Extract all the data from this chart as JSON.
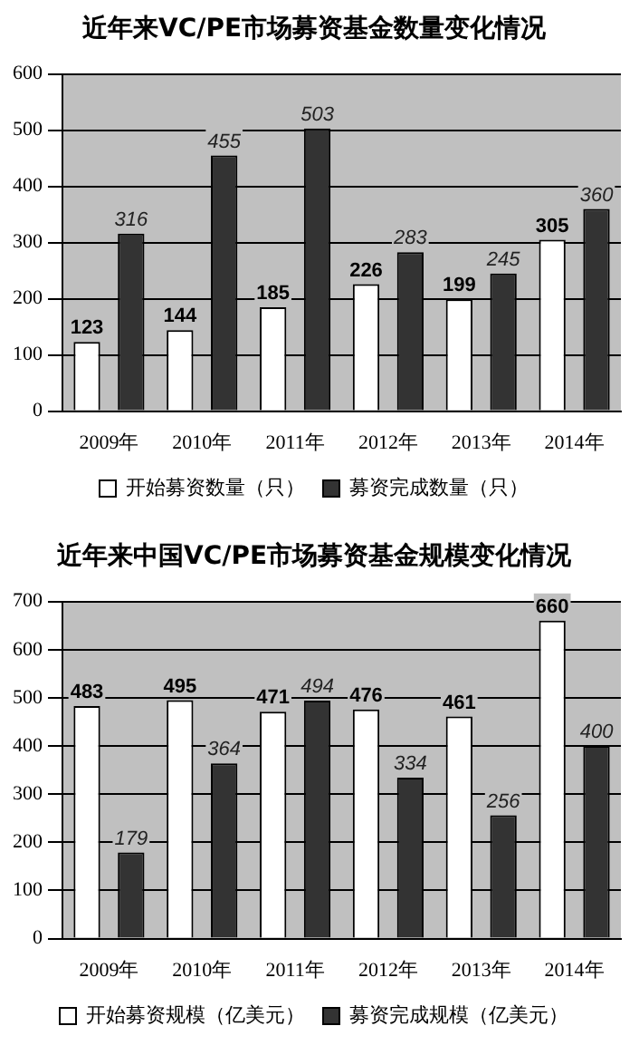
{
  "chart_data": [
    {
      "type": "bar",
      "title": "近年来VC/PE市场募资基金数量变化情况",
      "categories": [
        "2009年",
        "2010年",
        "2011年",
        "2012年",
        "2013年",
        "2014年"
      ],
      "series": [
        {
          "name": "开始募资数量（只）",
          "color": "#ffffff",
          "values": [
            123,
            144,
            185,
            226,
            199,
            305
          ]
        },
        {
          "name": "募资完成数量（只）",
          "color": "#333333",
          "values": [
            316,
            455,
            503,
            283,
            245,
            360
          ]
        }
      ],
      "ylim": [
        0,
        600
      ],
      "yticks": [
        0,
        100,
        200,
        300,
        400,
        500,
        600
      ],
      "grid": "y",
      "legend": "bottom",
      "data_labels": true
    },
    {
      "type": "bar",
      "title": "近年来中国VC/PE市场募资基金规模变化情况",
      "categories": [
        "2009年",
        "2010年",
        "2011年",
        "2012年",
        "2013年",
        "2014年"
      ],
      "series": [
        {
          "name": "开始募资规模（亿美元）",
          "color": "#ffffff",
          "values": [
            483,
            495,
            471,
            476,
            461,
            660
          ]
        },
        {
          "name": "募资完成规模（亿美元）",
          "color": "#333333",
          "values": [
            179,
            364,
            494,
            334,
            256,
            400
          ]
        }
      ],
      "ylim": [
        0,
        700
      ],
      "yticks": [
        0,
        100,
        200,
        300,
        400,
        500,
        600,
        700
      ],
      "grid": "y",
      "legend": "bottom",
      "data_labels": true
    }
  ]
}
